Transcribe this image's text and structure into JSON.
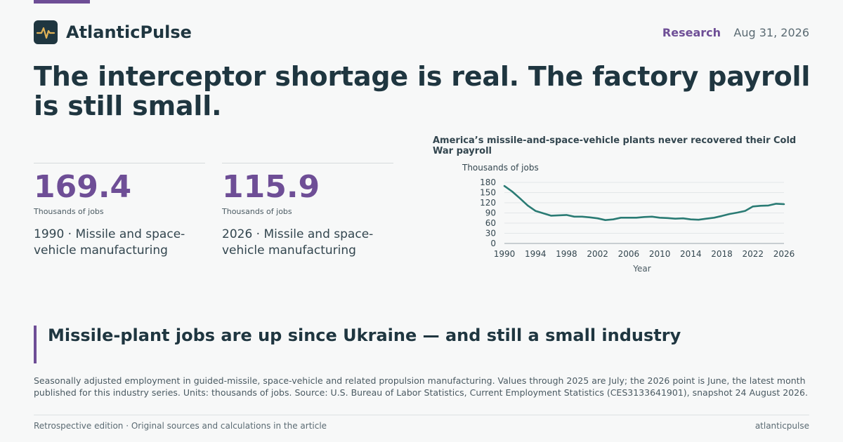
{
  "brand": {
    "name": "AtlanticPulse",
    "logo_icon": "pulse-icon"
  },
  "header": {
    "section": "Research",
    "date": "Aug 31, 2026"
  },
  "headline": "The interceptor shortage is real. The factory payroll is still small.",
  "stats": [
    {
      "value": "169.4",
      "unit": "Thousands of jobs",
      "label": "1990 · Missile and space-vehicle manufacturing"
    },
    {
      "value": "115.9",
      "unit": "Thousands of jobs",
      "label": "2026 · Missile and space-vehicle manufacturing"
    }
  ],
  "chart_data": {
    "type": "line",
    "title": "America’s missile-and-space-vehicle plants never recovered their Cold War payroll",
    "ylabel": "Thousands of jobs",
    "xlabel": "Year",
    "ylim": [
      0,
      180
    ],
    "yticks": [
      0,
      30,
      60,
      90,
      120,
      150,
      180
    ],
    "xlim": [
      1990,
      2026
    ],
    "xticks": [
      1990,
      1994,
      1998,
      2002,
      2006,
      2010,
      2014,
      2018,
      2022,
      2026
    ],
    "grid": true,
    "colors": {
      "line": "#2a7b74",
      "grid": "#e3e6e8",
      "axis": "#9aa4aa"
    },
    "x": [
      1990,
      1991,
      1992,
      1993,
      1994,
      1995,
      1996,
      1997,
      1998,
      1999,
      2000,
      2001,
      2002,
      2003,
      2004,
      2005,
      2006,
      2007,
      2008,
      2009,
      2010,
      2011,
      2012,
      2013,
      2014,
      2015,
      2016,
      2017,
      2018,
      2019,
      2020,
      2021,
      2022,
      2023,
      2024,
      2025,
      2026
    ],
    "values": [
      169.4,
      153,
      133,
      112,
      96,
      89,
      82,
      83,
      84,
      79,
      79,
      77,
      74,
      69,
      71,
      76,
      76,
      76,
      78,
      79,
      76,
      75,
      73,
      74,
      71,
      70,
      73,
      76,
      81,
      87,
      91,
      96,
      109,
      111,
      112,
      117,
      115.9
    ]
  },
  "callout": "Missile-plant jobs are up since Ukraine — and still a small industry",
  "note": "Seasonally adjusted employment in guided-missile, space-vehicle and related propulsion manufacturing. Values through 2025 are July; the 2026 point is June, the latest month published for this industry series. Units: thousands of jobs. Source: U.S. Bureau of Labor Statistics, Current Employment Statistics (CES3133641901), snapshot 24 August 2026.",
  "footer": {
    "left": "Retrospective edition · Original sources and calculations in the article",
    "right": "atlanticpulse"
  },
  "colors": {
    "accent": "#6e4e96",
    "ink": "#1f3640",
    "background": "#f7f8f8"
  }
}
